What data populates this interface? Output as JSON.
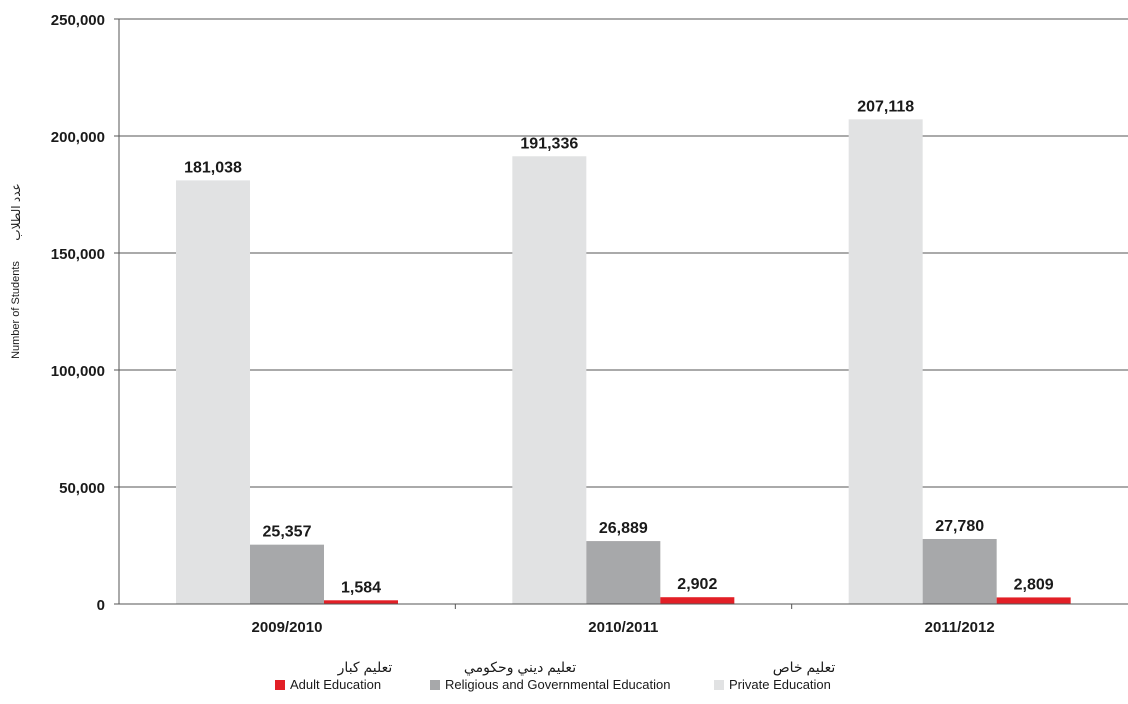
{
  "chart_data": {
    "type": "bar",
    "categories": [
      "2009/2010",
      "2010/2011",
      "2011/2012"
    ],
    "series": [
      {
        "name": "Private Education",
        "name_ar": "تعليم خاص",
        "values": [
          181038,
          191336,
          207118
        ],
        "labels": [
          "181,038",
          "191,336",
          "207,118"
        ],
        "color": "#E1E2E3"
      },
      {
        "name": "Religious and Governmental Education",
        "name_ar": "تعليم ديني وحكومي",
        "values": [
          25357,
          26889,
          27780
        ],
        "labels": [
          "25,357",
          "26,889",
          "27,780"
        ],
        "color": "#A7A8AA"
      },
      {
        "name": "Adult Education",
        "name_ar": "تعليم كبار",
        "values": [
          1584,
          2902,
          2809
        ],
        "labels": [
          "1,584",
          "2,902",
          "2,809"
        ],
        "color": "#E21F26"
      }
    ],
    "ylabel": "Number of Students",
    "ylabel_ar": "عدد الطلاب",
    "ylim": [
      0,
      250000
    ],
    "yticks": [
      0,
      50000,
      100000,
      150000,
      200000,
      250000
    ],
    "ytick_labels": [
      "0",
      "50,000",
      "100,000",
      "150,000",
      "200,000",
      "250,000"
    ],
    "grid": true,
    "legend": {
      "position": "bottom",
      "order": [
        "Adult Education",
        "Religious and Governmental Education",
        "Private Education"
      ]
    }
  }
}
